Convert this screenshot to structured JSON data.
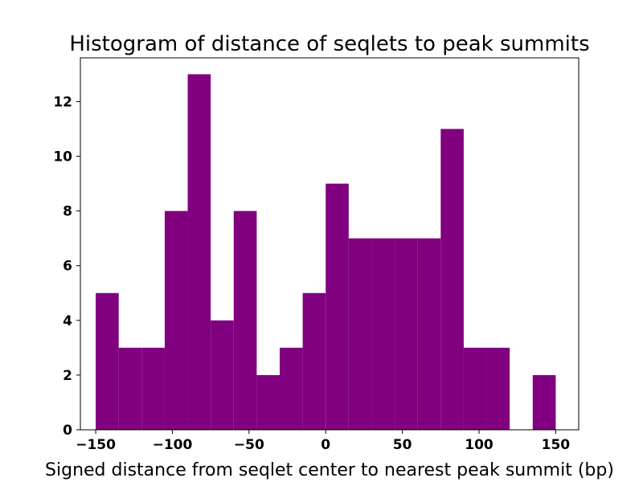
{
  "chart_data": {
    "type": "bar",
    "title": "Histogram of distance of seqlets to peak summits",
    "xlabel": "Signed distance from seqlet center to nearest peak summit (bp)",
    "ylabel": "",
    "color": "#800080",
    "bin_edges": [
      -150,
      -135,
      -120,
      -105,
      -90,
      -75,
      -60,
      -45,
      -30,
      -15,
      0,
      15,
      30,
      45,
      60,
      75,
      90,
      105,
      120,
      135,
      150
    ],
    "values": [
      5,
      3,
      3,
      8,
      13,
      4,
      8,
      2,
      3,
      5,
      9,
      7,
      7,
      7,
      7,
      11,
      3,
      3,
      0,
      2
    ],
    "xlim": [
      -160,
      165
    ],
    "ylim": [
      0,
      13.6
    ],
    "xticks": [
      -150,
      -100,
      -50,
      0,
      50,
      100,
      150
    ],
    "xtick_labels": [
      "−150",
      "−100",
      "−50",
      "0",
      "50",
      "100",
      "150"
    ],
    "yticks": [
      0,
      2,
      4,
      6,
      8,
      10,
      12
    ],
    "ytick_labels": [
      "0",
      "2",
      "4",
      "6",
      "8",
      "10",
      "12"
    ],
    "grid": false
  }
}
